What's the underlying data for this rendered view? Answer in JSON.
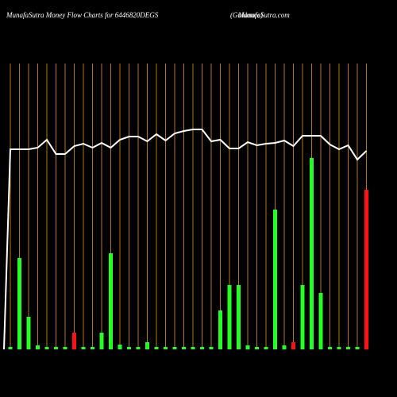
{
  "chart_data": {
    "type": "bar",
    "title": "MunafaSutra  Money Flow  Charts for 6446820DEGS",
    "subtitle": "(Guidance)",
    "source": "MunafaSutra.com",
    "values": [
      3,
      115,
      41,
      5,
      3,
      3,
      3,
      21,
      3,
      3,
      21,
      121,
      6,
      3,
      3,
      9,
      3,
      3,
      3,
      3,
      3,
      3,
      3,
      49,
      81,
      81,
      5,
      3,
      3,
      176,
      5,
      9,
      81,
      241,
      71,
      3,
      3,
      3,
      3,
      201
    ],
    "colors": [
      "#22ff22",
      "#22ff22",
      "#22ff22",
      "#22ff22",
      "#22ff22",
      "#22ff22",
      "#22ff22",
      "#ff1111",
      "#22ff22",
      "#22ff22",
      "#22ff22",
      "#22ff22",
      "#22ff22",
      "#22ff22",
      "#22ff22",
      "#22ff22",
      "#22ff22",
      "#22ff22",
      "#22ff22",
      "#22ff22",
      "#22ff22",
      "#22ff22",
      "#22ff22",
      "#22ff22",
      "#22ff22",
      "#22ff22",
      "#22ff22",
      "#22ff22",
      "#22ff22",
      "#22ff22",
      "#22ff22",
      "#ff1111",
      "#22ff22",
      "#22ff22",
      "#22ff22",
      "#22ff22",
      "#22ff22",
      "#22ff22",
      "#22ff22",
      "#ff1111"
    ],
    "line": {
      "color": "#ffffff",
      "values": [
        252,
        252,
        252,
        254,
        264,
        246,
        246,
        256,
        259,
        254,
        260,
        254,
        264,
        268,
        268,
        262,
        271,
        263,
        272,
        275,
        277,
        277,
        262,
        264,
        253,
        253,
        261,
        257,
        259,
        260,
        263,
        256,
        269,
        269,
        269,
        258,
        252,
        257,
        239,
        250
      ]
    },
    "grid_color": "#b8741a"
  }
}
